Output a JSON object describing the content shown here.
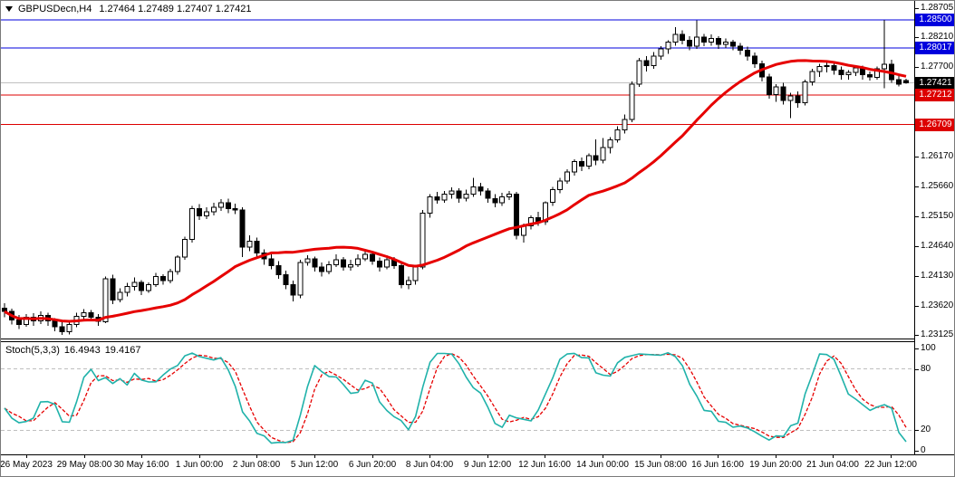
{
  "chart_title": {
    "symbol_period": "GBPUSDecn,H4",
    "ohlc_display": "1.27464 1.27489 1.27407 1.27421"
  },
  "indicator_panel": {
    "label": "Stoch(5,3,3)",
    "k_value": "16.4943",
    "d_value": "19.4167"
  },
  "chart_data": {
    "type": "candlestick",
    "symbol": "GBPUSDecn",
    "timeframe": "H4",
    "current_bar": {
      "open": 1.27464,
      "high": 1.27489,
      "low": 1.27407,
      "close": 1.27421
    },
    "price_axis": {
      "min": 1.2306,
      "max": 1.2879,
      "ticks": [
        "1.28705",
        "1.28210",
        "1.27700",
        "1.27190",
        "1.26680",
        "1.26170",
        "1.25660",
        "1.25150",
        "1.24640",
        "1.24130",
        "1.23620",
        "1.23125"
      ]
    },
    "price_badges": [
      {
        "text": "1.28500",
        "price": 1.285,
        "bg": "#0000dd",
        "role": "level-price-badge"
      },
      {
        "text": "1.28017",
        "price": 1.28017,
        "bg": "#0000dd",
        "role": "level-price-badge"
      },
      {
        "text": "1.27421",
        "price": 1.27421,
        "bg": "#000000",
        "role": "current-price-badge"
      },
      {
        "text": "1.27212",
        "price": 1.27212,
        "bg": "#dd0000",
        "role": "level-price-badge"
      },
      {
        "text": "1.26709",
        "price": 1.26709,
        "bg": "#dd0000",
        "role": "level-price-badge"
      }
    ],
    "horizontal_lines": [
      {
        "price": 1.285,
        "color": "#0000dd"
      },
      {
        "price": 1.28017,
        "color": "#0000dd"
      },
      {
        "price": 1.27421,
        "color": "#c0c0c0"
      },
      {
        "price": 1.27212,
        "color": "#dd0000"
      },
      {
        "price": 1.26709,
        "color": "#dd0000"
      }
    ],
    "time_axis": {
      "labels": [
        "26 May 2023",
        "29 May 08:00",
        "30 May 16:00",
        "1 Jun 00:00",
        "2 Jun 08:00",
        "5 Jun 12:00",
        "6 Jun 20:00",
        "8 Jun 04:00",
        "9 Jun 12:00",
        "12 Jun 16:00",
        "14 Jun 00:00",
        "15 Jun 08:00",
        "16 Jun 16:00",
        "19 Jun 20:00",
        "21 Jun 04:00",
        "22 Jun 12:00"
      ]
    },
    "moving_average": {
      "method": "sma",
      "period": 24,
      "color": "#e60000",
      "width": 3
    },
    "stochastic": {
      "k_period": 5,
      "d_period": 3,
      "slowing": 3,
      "k_color": "#20b2aa",
      "d_color": "#e60000",
      "levels": [
        80,
        20
      ],
      "level_color": "#bfbfbf",
      "scale_labels": [
        100,
        80,
        20,
        0
      ],
      "range": [
        0,
        100
      ]
    },
    "candle_colors": {
      "up_fill": "#ffffff",
      "down_fill": "#000000",
      "border": "#000000"
    },
    "candles": [
      [
        1.2358,
        1.2366,
        1.2342,
        1.2352
      ],
      [
        1.2352,
        1.2357,
        1.233,
        1.2338
      ],
      [
        1.2338,
        1.2346,
        1.2322,
        1.233
      ],
      [
        1.233,
        1.2348,
        1.2326,
        1.2342
      ],
      [
        1.2342,
        1.2349,
        1.2328,
        1.2336
      ],
      [
        1.2336,
        1.2352,
        1.2331,
        1.2345
      ],
      [
        1.2345,
        1.235,
        1.2328,
        1.2336
      ],
      [
        1.2336,
        1.2341,
        1.2318,
        1.2326
      ],
      [
        1.2326,
        1.2334,
        1.2312,
        1.2318
      ],
      [
        1.2318,
        1.2336,
        1.2313,
        1.233
      ],
      [
        1.233,
        1.235,
        1.2325,
        1.2344
      ],
      [
        1.2344,
        1.2356,
        1.2338,
        1.235
      ],
      [
        1.235,
        1.2355,
        1.2335,
        1.2342
      ],
      [
        1.2342,
        1.2348,
        1.2328,
        1.2335
      ],
      [
        1.2335,
        1.2412,
        1.2332,
        1.2408
      ],
      [
        1.2408,
        1.2415,
        1.2365,
        1.2372
      ],
      [
        1.2372,
        1.2392,
        1.2368,
        1.2385
      ],
      [
        1.2385,
        1.2401,
        1.2378,
        1.2395
      ],
      [
        1.2395,
        1.241,
        1.2388,
        1.2402
      ],
      [
        1.2402,
        1.2406,
        1.238,
        1.2388
      ],
      [
        1.2388,
        1.2402,
        1.2384,
        1.2398
      ],
      [
        1.2398,
        1.2418,
        1.2394,
        1.2412
      ],
      [
        1.2412,
        1.2416,
        1.2398,
        1.2405
      ],
      [
        1.2405,
        1.2425,
        1.24,
        1.242
      ],
      [
        1.242,
        1.2448,
        1.2415,
        1.2445
      ],
      [
        1.2445,
        1.248,
        1.244,
        1.2475
      ],
      [
        1.2475,
        1.2532,
        1.247,
        1.2528
      ],
      [
        1.2528,
        1.2535,
        1.2508,
        1.2515
      ],
      [
        1.2515,
        1.253,
        1.251,
        1.2522
      ],
      [
        1.2522,
        1.2538,
        1.2516,
        1.253
      ],
      [
        1.253,
        1.2544,
        1.2524,
        1.2538
      ],
      [
        1.2538,
        1.2545,
        1.252,
        1.2528
      ],
      [
        1.2528,
        1.2536,
        1.2518,
        1.2525
      ],
      [
        1.2525,
        1.253,
        1.2445,
        1.2462
      ],
      [
        1.2462,
        1.2482,
        1.2455,
        1.2472
      ],
      [
        1.2472,
        1.2478,
        1.2446,
        1.2452
      ],
      [
        1.2452,
        1.2458,
        1.2432,
        1.2442
      ],
      [
        1.2442,
        1.245,
        1.2424,
        1.243
      ],
      [
        1.243,
        1.2438,
        1.2408,
        1.2415
      ],
      [
        1.2415,
        1.2422,
        1.239,
        1.2398
      ],
      [
        1.2398,
        1.2405,
        1.2369,
        1.238
      ],
      [
        1.238,
        1.244,
        1.2375,
        1.2436
      ],
      [
        1.2436,
        1.2448,
        1.243,
        1.2442
      ],
      [
        1.2442,
        1.2446,
        1.242,
        1.2428
      ],
      [
        1.2428,
        1.2436,
        1.2412,
        1.242
      ],
      [
        1.242,
        1.2438,
        1.2416,
        1.2432
      ],
      [
        1.2432,
        1.245,
        1.2428,
        1.244
      ],
      [
        1.244,
        1.2445,
        1.2422,
        1.2428
      ],
      [
        1.2428,
        1.244,
        1.2422,
        1.2432
      ],
      [
        1.2432,
        1.245,
        1.2428,
        1.2442
      ],
      [
        1.2442,
        1.2458,
        1.2438,
        1.245
      ],
      [
        1.245,
        1.2455,
        1.2432,
        1.2438
      ],
      [
        1.2438,
        1.2444,
        1.242,
        1.2428
      ],
      [
        1.2428,
        1.2448,
        1.2424,
        1.244
      ],
      [
        1.244,
        1.2445,
        1.2425,
        1.243
      ],
      [
        1.243,
        1.2435,
        1.2392,
        1.2398
      ],
      [
        1.2398,
        1.2412,
        1.239,
        1.2405
      ],
      [
        1.2405,
        1.2432,
        1.2398,
        1.2428
      ],
      [
        1.2428,
        1.2525,
        1.2424,
        1.252
      ],
      [
        1.252,
        1.2552,
        1.2512,
        1.2548
      ],
      [
        1.2548,
        1.2556,
        1.2536,
        1.2542
      ],
      [
        1.2542,
        1.2558,
        1.2538,
        1.2552
      ],
      [
        1.2552,
        1.2564,
        1.2545,
        1.2558
      ],
      [
        1.2558,
        1.2562,
        1.2538,
        1.2545
      ],
      [
        1.2545,
        1.256,
        1.254,
        1.2552
      ],
      [
        1.2552,
        1.258,
        1.2548,
        1.2565
      ],
      [
        1.2565,
        1.2572,
        1.255,
        1.2558
      ],
      [
        1.2558,
        1.2562,
        1.2538,
        1.2545
      ],
      [
        1.2545,
        1.2552,
        1.253,
        1.2538
      ],
      [
        1.2538,
        1.2555,
        1.2532,
        1.2548
      ],
      [
        1.2548,
        1.2558,
        1.2542,
        1.2552
      ],
      [
        1.2552,
        1.2556,
        1.2475,
        1.2482
      ],
      [
        1.2482,
        1.2502,
        1.247,
        1.2498
      ],
      [
        1.2498,
        1.2516,
        1.2492,
        1.2512
      ],
      [
        1.2512,
        1.2522,
        1.2498,
        1.2505
      ],
      [
        1.2505,
        1.254,
        1.25,
        1.2538
      ],
      [
        1.2538,
        1.2565,
        1.2532,
        1.256
      ],
      [
        1.256,
        1.258,
        1.2554,
        1.2575
      ],
      [
        1.2575,
        1.2595,
        1.257,
        1.259
      ],
      [
        1.259,
        1.2612,
        1.2584,
        1.2608
      ],
      [
        1.2608,
        1.2615,
        1.2592,
        1.26
      ],
      [
        1.26,
        1.2622,
        1.2595,
        1.2618
      ],
      [
        1.2618,
        1.2646,
        1.2602,
        1.261
      ],
      [
        1.261,
        1.2648,
        1.2605,
        1.2632
      ],
      [
        1.2632,
        1.265,
        1.2622,
        1.2645
      ],
      [
        1.2645,
        1.2668,
        1.264,
        1.2662
      ],
      [
        1.2662,
        1.2688,
        1.2656,
        1.268
      ],
      [
        1.268,
        1.2745,
        1.2675,
        1.274
      ],
      [
        1.274,
        1.2785,
        1.2735,
        1.278
      ],
      [
        1.278,
        1.2788,
        1.2762,
        1.2772
      ],
      [
        1.2772,
        1.2795,
        1.2766,
        1.2788
      ],
      [
        1.2788,
        1.2805,
        1.2782,
        1.28
      ],
      [
        1.28,
        1.2815,
        1.2792,
        1.2812
      ],
      [
        1.2812,
        1.2837,
        1.2806,
        1.2825
      ],
      [
        1.2825,
        1.2832,
        1.2808,
        1.2815
      ],
      [
        1.2815,
        1.2822,
        1.2798,
        1.2805
      ],
      [
        1.2805,
        1.2849,
        1.28,
        1.282
      ],
      [
        1.282,
        1.2826,
        1.2805,
        1.2812
      ],
      [
        1.2812,
        1.2825,
        1.2806,
        1.2818
      ],
      [
        1.2818,
        1.2822,
        1.28,
        1.2808
      ],
      [
        1.2808,
        1.2818,
        1.2802,
        1.2812
      ],
      [
        1.2812,
        1.2816,
        1.2798,
        1.2805
      ],
      [
        1.2805,
        1.281,
        1.279,
        1.2798
      ],
      [
        1.2798,
        1.2804,
        1.278,
        1.2788
      ],
      [
        1.2788,
        1.2794,
        1.2768,
        1.2775
      ],
      [
        1.2775,
        1.278,
        1.2745,
        1.2752
      ],
      [
        1.2752,
        1.2758,
        1.2715,
        1.2722
      ],
      [
        1.2722,
        1.274,
        1.271,
        1.2735
      ],
      [
        1.2735,
        1.2742,
        1.2705,
        1.2712
      ],
      [
        1.2712,
        1.2725,
        1.2682,
        1.272
      ],
      [
        1.272,
        1.2728,
        1.27,
        1.2708
      ],
      [
        1.2708,
        1.2748,
        1.2704,
        1.2744
      ],
      [
        1.2744,
        1.2766,
        1.2738,
        1.2762
      ],
      [
        1.2762,
        1.2775,
        1.2752,
        1.277
      ],
      [
        1.277,
        1.2778,
        1.276,
        1.2772
      ],
      [
        1.2772,
        1.2776,
        1.2756,
        1.2764
      ],
      [
        1.2764,
        1.277,
        1.2748,
        1.2756
      ],
      [
        1.2756,
        1.2764,
        1.2748,
        1.276
      ],
      [
        1.276,
        1.2772,
        1.2754,
        1.2768
      ],
      [
        1.2768,
        1.2772,
        1.2748,
        1.2756
      ],
      [
        1.2756,
        1.2762,
        1.2746,
        1.2752
      ],
      [
        1.2752,
        1.277,
        1.2748,
        1.2766
      ],
      [
        1.2766,
        1.285,
        1.2733,
        1.2774
      ],
      [
        1.2774,
        1.2782,
        1.2742,
        1.2748
      ],
      [
        1.2748,
        1.2754,
        1.2736,
        1.274
      ],
      [
        1.27464,
        1.27489,
        1.27407,
        1.27421
      ]
    ]
  }
}
